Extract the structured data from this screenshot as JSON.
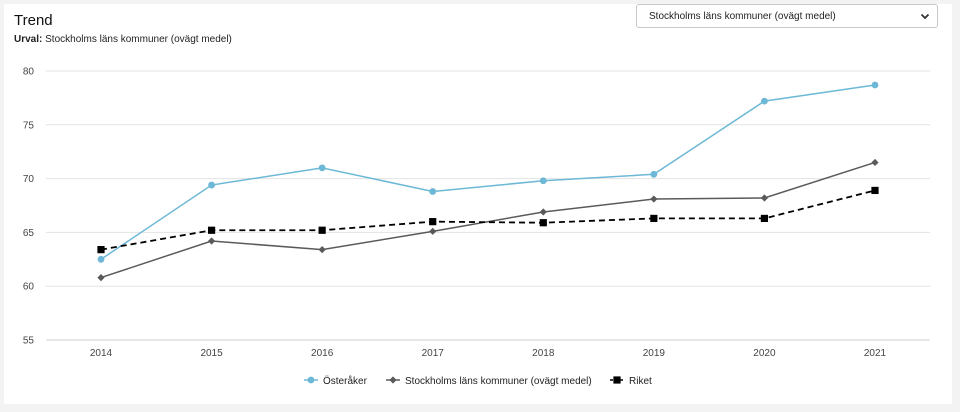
{
  "header": {
    "title": "Trend",
    "selection_label": "Urval:",
    "selection_value": "Stockholms läns kommuner (ovägt medel)"
  },
  "dropdown": {
    "selected": "Stockholms läns kommuner (ovägt medel)",
    "icon": "chevron-down-icon"
  },
  "chart_data": {
    "type": "line",
    "x": [
      "2014",
      "2015",
      "2016",
      "2017",
      "2018",
      "2019",
      "2020",
      "2021"
    ],
    "ylim": [
      55,
      80
    ],
    "yticks": [
      55,
      60,
      65,
      70,
      75,
      80
    ],
    "grid": true,
    "legend_position": "bottom-center",
    "series": [
      {
        "name": "Österåker",
        "values": [
          62.5,
          69.4,
          71.0,
          68.8,
          69.8,
          70.4,
          77.2,
          78.7
        ],
        "color": "#6cb8d6",
        "marker": "circle",
        "dash": "solid"
      },
      {
        "name": "Stockholms läns kommuner (ovägt medel)",
        "values": [
          60.8,
          64.2,
          63.4,
          65.1,
          66.9,
          68.1,
          68.2,
          71.5
        ],
        "color": "#5a5a5a",
        "marker": "diamond",
        "dash": "solid"
      },
      {
        "name": "Riket",
        "values": [
          63.4,
          65.2,
          65.2,
          66.0,
          65.9,
          66.3,
          66.3,
          68.9
        ],
        "color": "#000000",
        "marker": "square",
        "dash": "dashed"
      }
    ]
  }
}
